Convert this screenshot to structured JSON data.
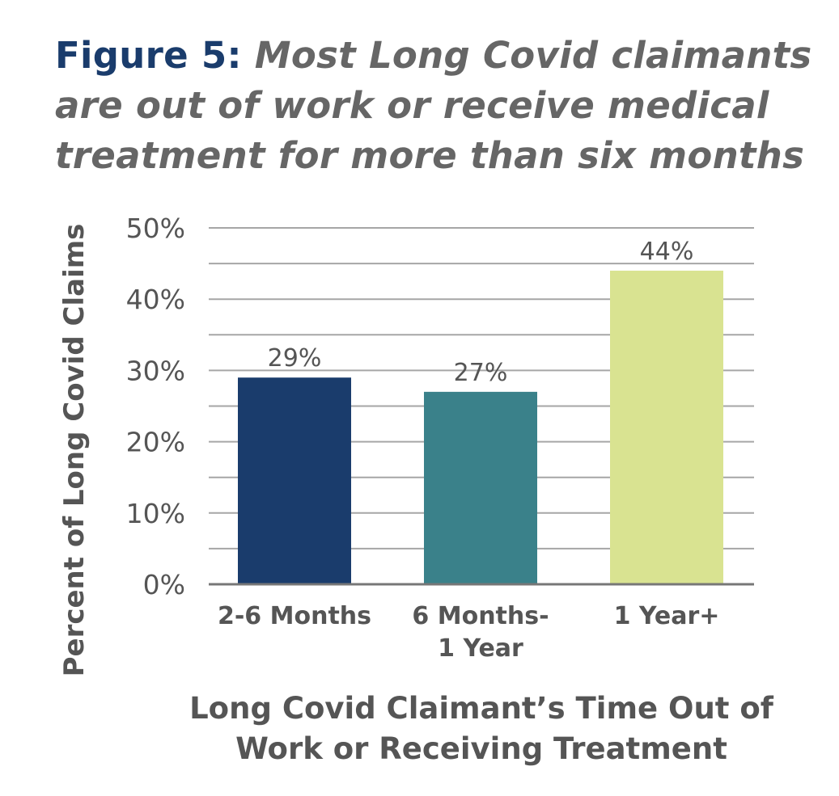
{
  "figure": {
    "label": "Figure 5:",
    "title": "Most Long Covid claimants are out of work or receive medical treatment for more than six months"
  },
  "colors": {
    "title_label": "#1a3c6c",
    "text": "#555555",
    "grid": "#a6a6a6",
    "axis": "#777777"
  },
  "chart_data": {
    "type": "bar",
    "title": "Most Long Covid claimants are out of work or receive medical treatment for more than six months",
    "xlabel": "Long Covid Claimant’s Time Out of Work or Receiving Treatment",
    "ylabel": "Percent of Long Covid Claims",
    "categories": [
      "2-6 Months",
      "6 Months-1 Year",
      "1 Year+"
    ],
    "category_lines": [
      [
        "2-6 Months"
      ],
      [
        "6 Months-",
        "1 Year"
      ],
      [
        "1 Year+"
      ]
    ],
    "values": [
      29,
      27,
      44
    ],
    "value_labels": [
      "29%",
      "27%",
      "44%"
    ],
    "bar_colors": [
      "#1a3c6c",
      "#3a818a",
      "#d9e391"
    ],
    "ylim": [
      0,
      50
    ],
    "yticks": [
      0,
      10,
      20,
      30,
      40,
      50
    ],
    "ytick_labels": [
      "0%",
      "10%",
      "20%",
      "30%",
      "40%",
      "50%"
    ],
    "grid_step": 5,
    "grid": true,
    "legend": "none"
  }
}
